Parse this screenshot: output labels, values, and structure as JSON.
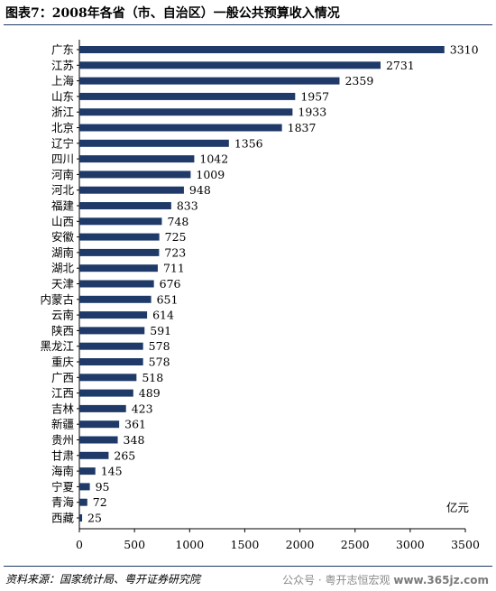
{
  "header": {
    "title": "图表7：2008年各省（市、自治区）一般公共预算收入情况"
  },
  "footer": {
    "source": "资料来源：国家统计局、粤开证券研究院",
    "watermark": "公众号 · 粤开志恒宏观",
    "watermark_site": "www.365jz.com"
  },
  "colors": {
    "bar": "#1f3a68",
    "rule": "#1f3a68"
  },
  "chart_data": {
    "type": "bar",
    "orientation": "horizontal",
    "title": "图表7：2008年各省（市、自治区）一般公共预算收入情况",
    "unit_label": "亿元",
    "xlim": [
      0,
      3500
    ],
    "xticks": [
      0,
      500,
      1000,
      1500,
      2000,
      2500,
      3000,
      3500
    ],
    "grid": false,
    "categories": [
      "广东",
      "江苏",
      "上海",
      "山东",
      "浙江",
      "北京",
      "辽宁",
      "四川",
      "河南",
      "河北",
      "福建",
      "山西",
      "安徽",
      "湖南",
      "湖北",
      "天津",
      "内蒙古",
      "云南",
      "陕西",
      "黑龙江",
      "重庆",
      "广西",
      "江西",
      "吉林",
      "新疆",
      "贵州",
      "甘肃",
      "海南",
      "宁夏",
      "青海",
      "西藏"
    ],
    "values": [
      3310,
      2731,
      2359,
      1957,
      1933,
      1837,
      1356,
      1042,
      1009,
      948,
      833,
      748,
      725,
      723,
      711,
      676,
      651,
      614,
      591,
      578,
      578,
      518,
      489,
      423,
      361,
      348,
      265,
      145,
      95,
      72,
      25
    ]
  }
}
